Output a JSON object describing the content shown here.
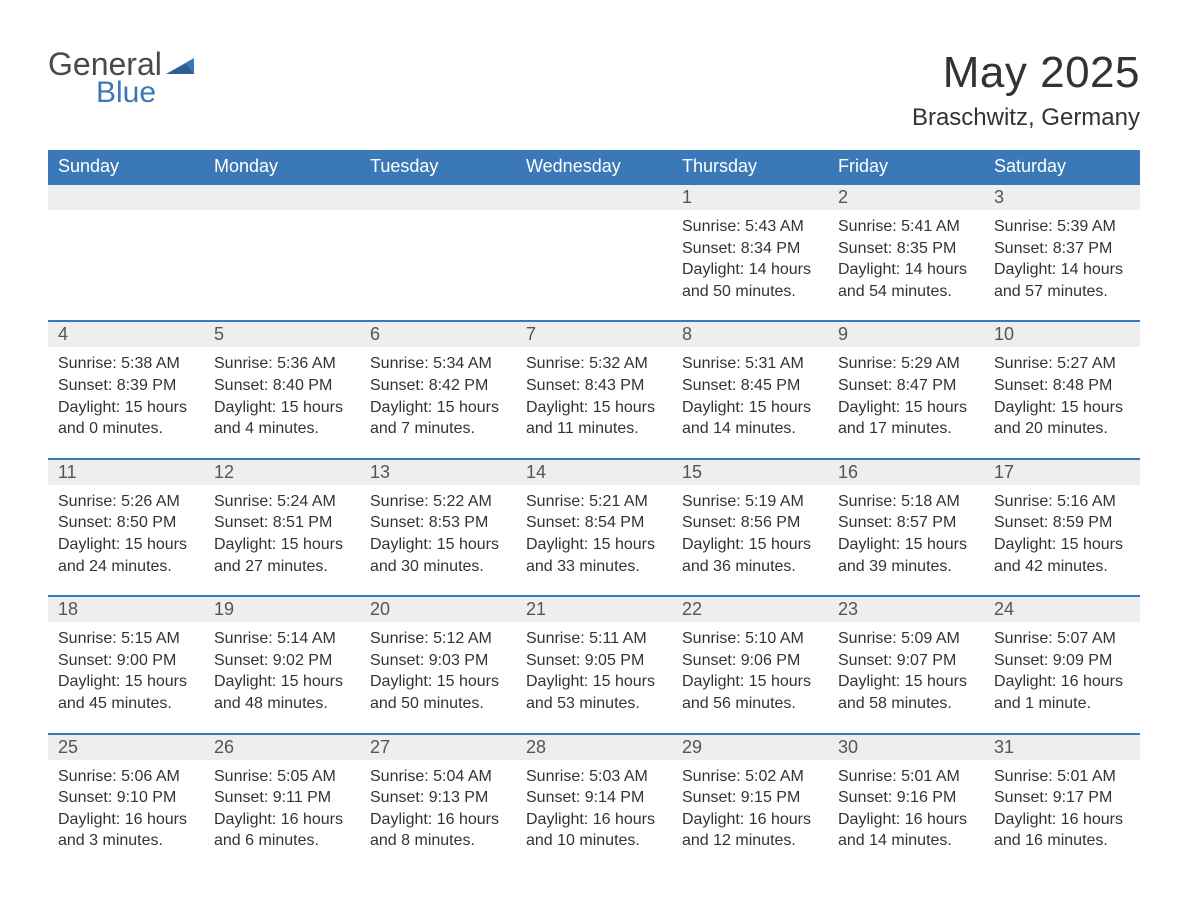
{
  "brand": {
    "line1": "General",
    "line2": "Blue"
  },
  "title": "May 2025",
  "location": "Braschwitz, Germany",
  "colors": {
    "header_bg": "#3b78b8",
    "header_text": "#ffffff",
    "daynum_bg": "#eeeeee",
    "cell_border_top": "#3b78b8",
    "body_text": "#333333",
    "logo_gray": "#4a4a4a",
    "logo_blue": "#3b78b8",
    "page_bg": "#ffffff"
  },
  "weekdays": [
    "Sunday",
    "Monday",
    "Tuesday",
    "Wednesday",
    "Thursday",
    "Friday",
    "Saturday"
  ],
  "weeks": [
    [
      null,
      null,
      null,
      null,
      {
        "n": "1",
        "sunrise": "Sunrise: 5:43 AM",
        "sunset": "Sunset: 8:34 PM",
        "daylight": "Daylight: 14 hours and 50 minutes."
      },
      {
        "n": "2",
        "sunrise": "Sunrise: 5:41 AM",
        "sunset": "Sunset: 8:35 PM",
        "daylight": "Daylight: 14 hours and 54 minutes."
      },
      {
        "n": "3",
        "sunrise": "Sunrise: 5:39 AM",
        "sunset": "Sunset: 8:37 PM",
        "daylight": "Daylight: 14 hours and 57 minutes."
      }
    ],
    [
      {
        "n": "4",
        "sunrise": "Sunrise: 5:38 AM",
        "sunset": "Sunset: 8:39 PM",
        "daylight": "Daylight: 15 hours and 0 minutes."
      },
      {
        "n": "5",
        "sunrise": "Sunrise: 5:36 AM",
        "sunset": "Sunset: 8:40 PM",
        "daylight": "Daylight: 15 hours and 4 minutes."
      },
      {
        "n": "6",
        "sunrise": "Sunrise: 5:34 AM",
        "sunset": "Sunset: 8:42 PM",
        "daylight": "Daylight: 15 hours and 7 minutes."
      },
      {
        "n": "7",
        "sunrise": "Sunrise: 5:32 AM",
        "sunset": "Sunset: 8:43 PM",
        "daylight": "Daylight: 15 hours and 11 minutes."
      },
      {
        "n": "8",
        "sunrise": "Sunrise: 5:31 AM",
        "sunset": "Sunset: 8:45 PM",
        "daylight": "Daylight: 15 hours and 14 minutes."
      },
      {
        "n": "9",
        "sunrise": "Sunrise: 5:29 AM",
        "sunset": "Sunset: 8:47 PM",
        "daylight": "Daylight: 15 hours and 17 minutes."
      },
      {
        "n": "10",
        "sunrise": "Sunrise: 5:27 AM",
        "sunset": "Sunset: 8:48 PM",
        "daylight": "Daylight: 15 hours and 20 minutes."
      }
    ],
    [
      {
        "n": "11",
        "sunrise": "Sunrise: 5:26 AM",
        "sunset": "Sunset: 8:50 PM",
        "daylight": "Daylight: 15 hours and 24 minutes."
      },
      {
        "n": "12",
        "sunrise": "Sunrise: 5:24 AM",
        "sunset": "Sunset: 8:51 PM",
        "daylight": "Daylight: 15 hours and 27 minutes."
      },
      {
        "n": "13",
        "sunrise": "Sunrise: 5:22 AM",
        "sunset": "Sunset: 8:53 PM",
        "daylight": "Daylight: 15 hours and 30 minutes."
      },
      {
        "n": "14",
        "sunrise": "Sunrise: 5:21 AM",
        "sunset": "Sunset: 8:54 PM",
        "daylight": "Daylight: 15 hours and 33 minutes."
      },
      {
        "n": "15",
        "sunrise": "Sunrise: 5:19 AM",
        "sunset": "Sunset: 8:56 PM",
        "daylight": "Daylight: 15 hours and 36 minutes."
      },
      {
        "n": "16",
        "sunrise": "Sunrise: 5:18 AM",
        "sunset": "Sunset: 8:57 PM",
        "daylight": "Daylight: 15 hours and 39 minutes."
      },
      {
        "n": "17",
        "sunrise": "Sunrise: 5:16 AM",
        "sunset": "Sunset: 8:59 PM",
        "daylight": "Daylight: 15 hours and 42 minutes."
      }
    ],
    [
      {
        "n": "18",
        "sunrise": "Sunrise: 5:15 AM",
        "sunset": "Sunset: 9:00 PM",
        "daylight": "Daylight: 15 hours and 45 minutes."
      },
      {
        "n": "19",
        "sunrise": "Sunrise: 5:14 AM",
        "sunset": "Sunset: 9:02 PM",
        "daylight": "Daylight: 15 hours and 48 minutes."
      },
      {
        "n": "20",
        "sunrise": "Sunrise: 5:12 AM",
        "sunset": "Sunset: 9:03 PM",
        "daylight": "Daylight: 15 hours and 50 minutes."
      },
      {
        "n": "21",
        "sunrise": "Sunrise: 5:11 AM",
        "sunset": "Sunset: 9:05 PM",
        "daylight": "Daylight: 15 hours and 53 minutes."
      },
      {
        "n": "22",
        "sunrise": "Sunrise: 5:10 AM",
        "sunset": "Sunset: 9:06 PM",
        "daylight": "Daylight: 15 hours and 56 minutes."
      },
      {
        "n": "23",
        "sunrise": "Sunrise: 5:09 AM",
        "sunset": "Sunset: 9:07 PM",
        "daylight": "Daylight: 15 hours and 58 minutes."
      },
      {
        "n": "24",
        "sunrise": "Sunrise: 5:07 AM",
        "sunset": "Sunset: 9:09 PM",
        "daylight": "Daylight: 16 hours and 1 minute."
      }
    ],
    [
      {
        "n": "25",
        "sunrise": "Sunrise: 5:06 AM",
        "sunset": "Sunset: 9:10 PM",
        "daylight": "Daylight: 16 hours and 3 minutes."
      },
      {
        "n": "26",
        "sunrise": "Sunrise: 5:05 AM",
        "sunset": "Sunset: 9:11 PM",
        "daylight": "Daylight: 16 hours and 6 minutes."
      },
      {
        "n": "27",
        "sunrise": "Sunrise: 5:04 AM",
        "sunset": "Sunset: 9:13 PM",
        "daylight": "Daylight: 16 hours and 8 minutes."
      },
      {
        "n": "28",
        "sunrise": "Sunrise: 5:03 AM",
        "sunset": "Sunset: 9:14 PM",
        "daylight": "Daylight: 16 hours and 10 minutes."
      },
      {
        "n": "29",
        "sunrise": "Sunrise: 5:02 AM",
        "sunset": "Sunset: 9:15 PM",
        "daylight": "Daylight: 16 hours and 12 minutes."
      },
      {
        "n": "30",
        "sunrise": "Sunrise: 5:01 AM",
        "sunset": "Sunset: 9:16 PM",
        "daylight": "Daylight: 16 hours and 14 minutes."
      },
      {
        "n": "31",
        "sunrise": "Sunrise: 5:01 AM",
        "sunset": "Sunset: 9:17 PM",
        "daylight": "Daylight: 16 hours and 16 minutes."
      }
    ]
  ]
}
